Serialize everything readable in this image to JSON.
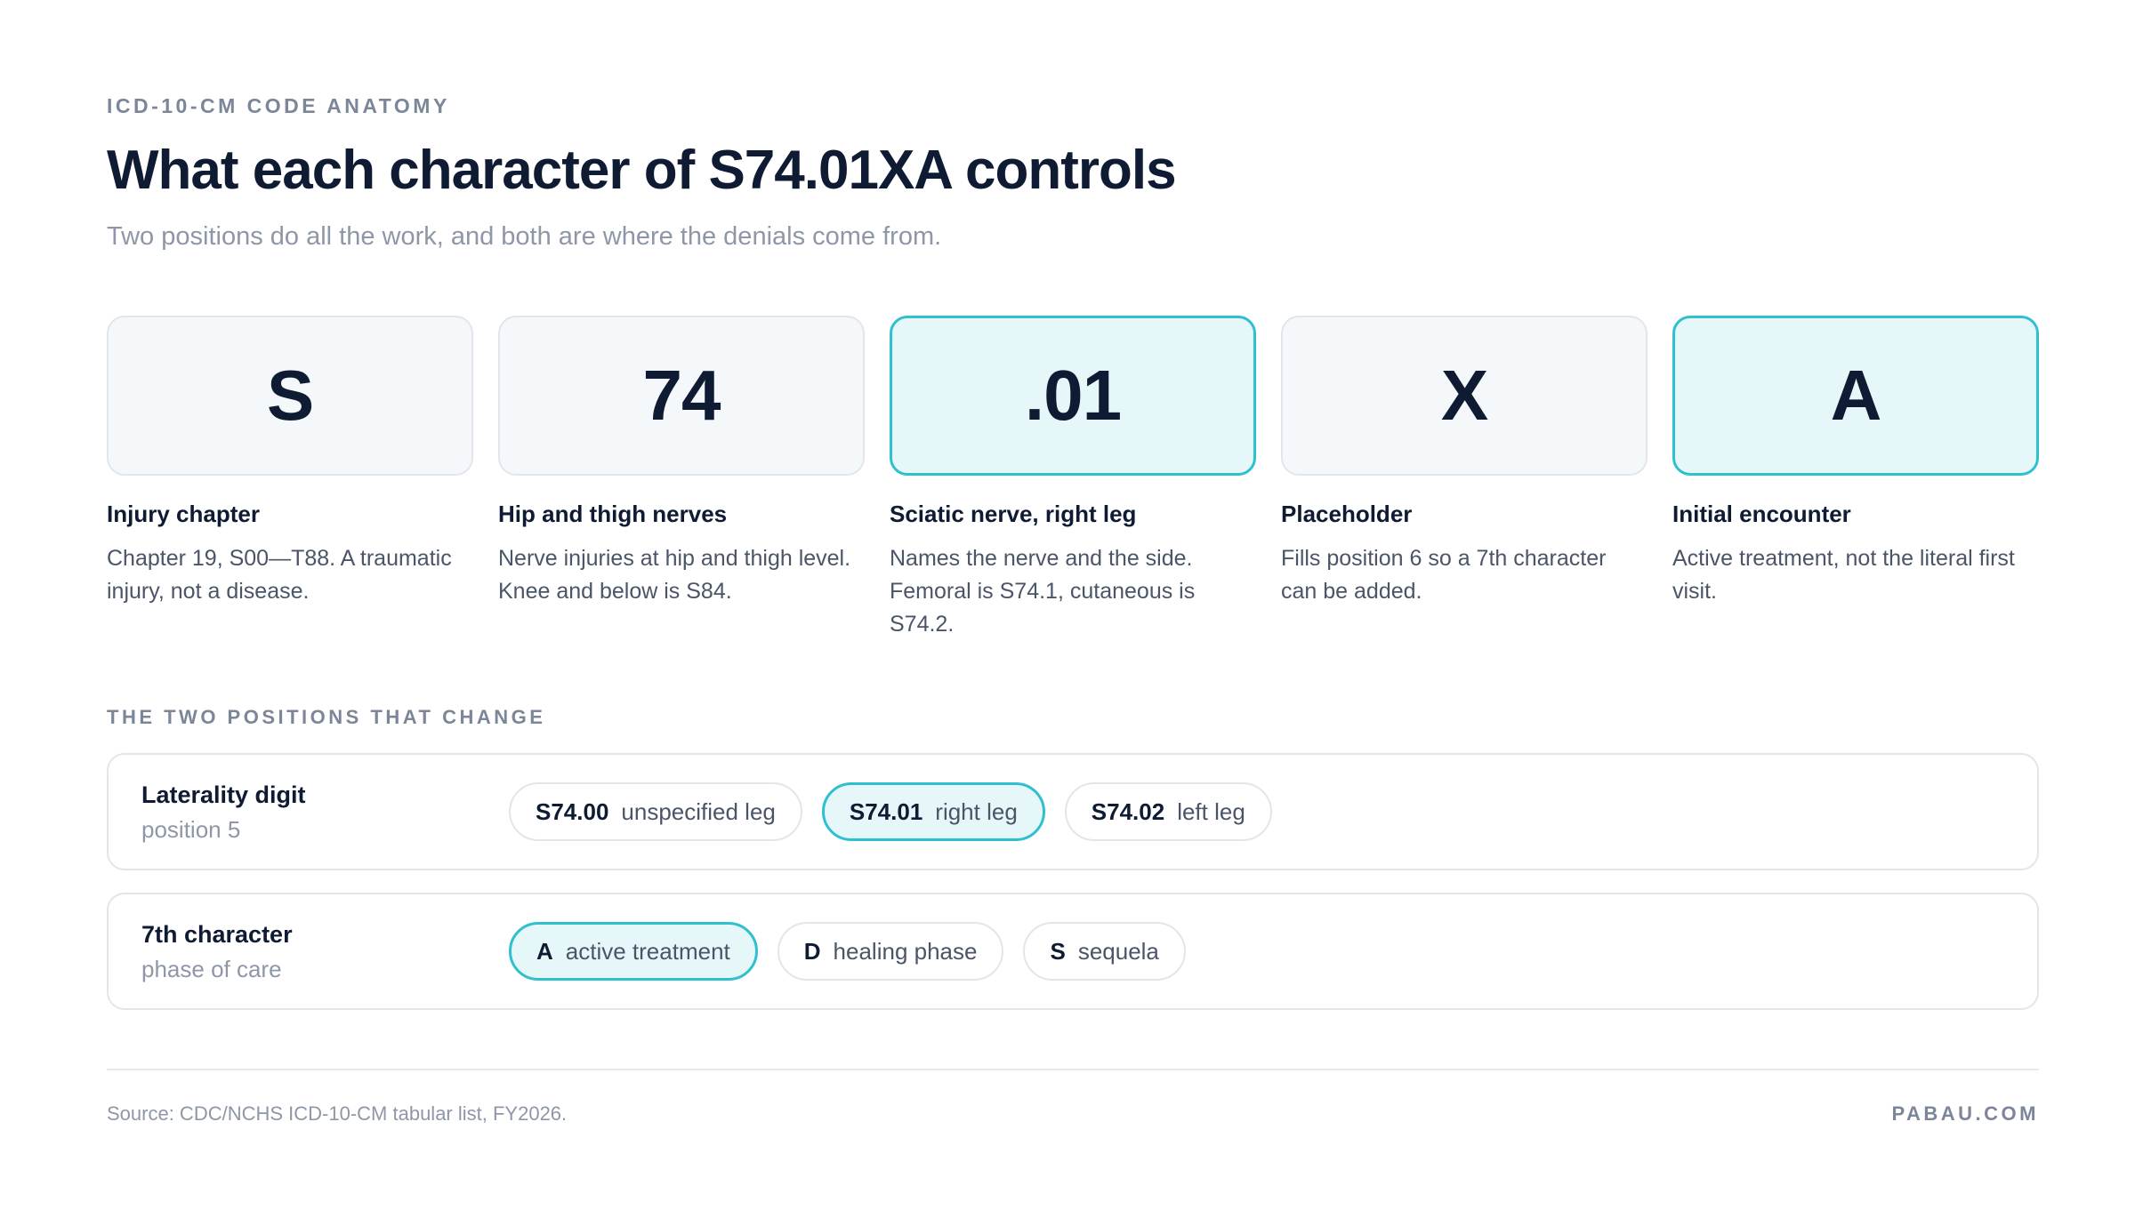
{
  "header": {
    "eyebrow": "ICD-10-CM CODE ANATOMY",
    "title": "What each character of S74.01XA controls",
    "subtitle": "Two positions do all the work, and both are where the denials come from."
  },
  "cards": [
    {
      "code": "S",
      "label": "Injury chapter",
      "description": "Chapter 19, S00—T88. A traumatic injury, not a disease.",
      "highlighted": false
    },
    {
      "code": "74",
      "label": "Hip and thigh nerves",
      "description": "Nerve injuries at hip and thigh level. Knee and below is S84.",
      "highlighted": false
    },
    {
      "code": ".01",
      "label": "Sciatic nerve, right leg",
      "description": "Names the nerve and the side. Femoral is S74.1, cutaneous is S74.2.",
      "highlighted": true
    },
    {
      "code": "X",
      "label": "Placeholder",
      "description": "Fills position 6 so a 7th character can be added.",
      "highlighted": false
    },
    {
      "code": "A",
      "label": "Initial encounter",
      "description": "Active treatment, not the literal first visit.",
      "highlighted": true
    }
  ],
  "positions": {
    "section_label": "THE TWO POSITIONS THAT CHANGE",
    "rows": [
      {
        "name": "Laterality digit",
        "sub": "position 5",
        "options": [
          {
            "code": "S74.00",
            "text": "unspecified leg",
            "selected": false
          },
          {
            "code": "S74.01",
            "text": "right leg",
            "selected": true
          },
          {
            "code": "S74.02",
            "text": "left leg",
            "selected": false
          }
        ]
      },
      {
        "name": "7th character",
        "sub": "phase of care",
        "options": [
          {
            "code": "A",
            "text": "active treatment",
            "selected": true
          },
          {
            "code": "D",
            "text": "healing phase",
            "selected": false
          },
          {
            "code": "S",
            "text": "sequela",
            "selected": false
          }
        ]
      }
    ]
  },
  "footer": {
    "source": "Source: CDC/NCHS ICD-10-CM tabular list, FY2026.",
    "brand": "PABAU.COM"
  },
  "colors": {
    "accent": "#2ec0cf",
    "accent_bg": "#e6f7fa",
    "text_dark": "#0f1b33",
    "text_muted": "#8e97a8"
  }
}
